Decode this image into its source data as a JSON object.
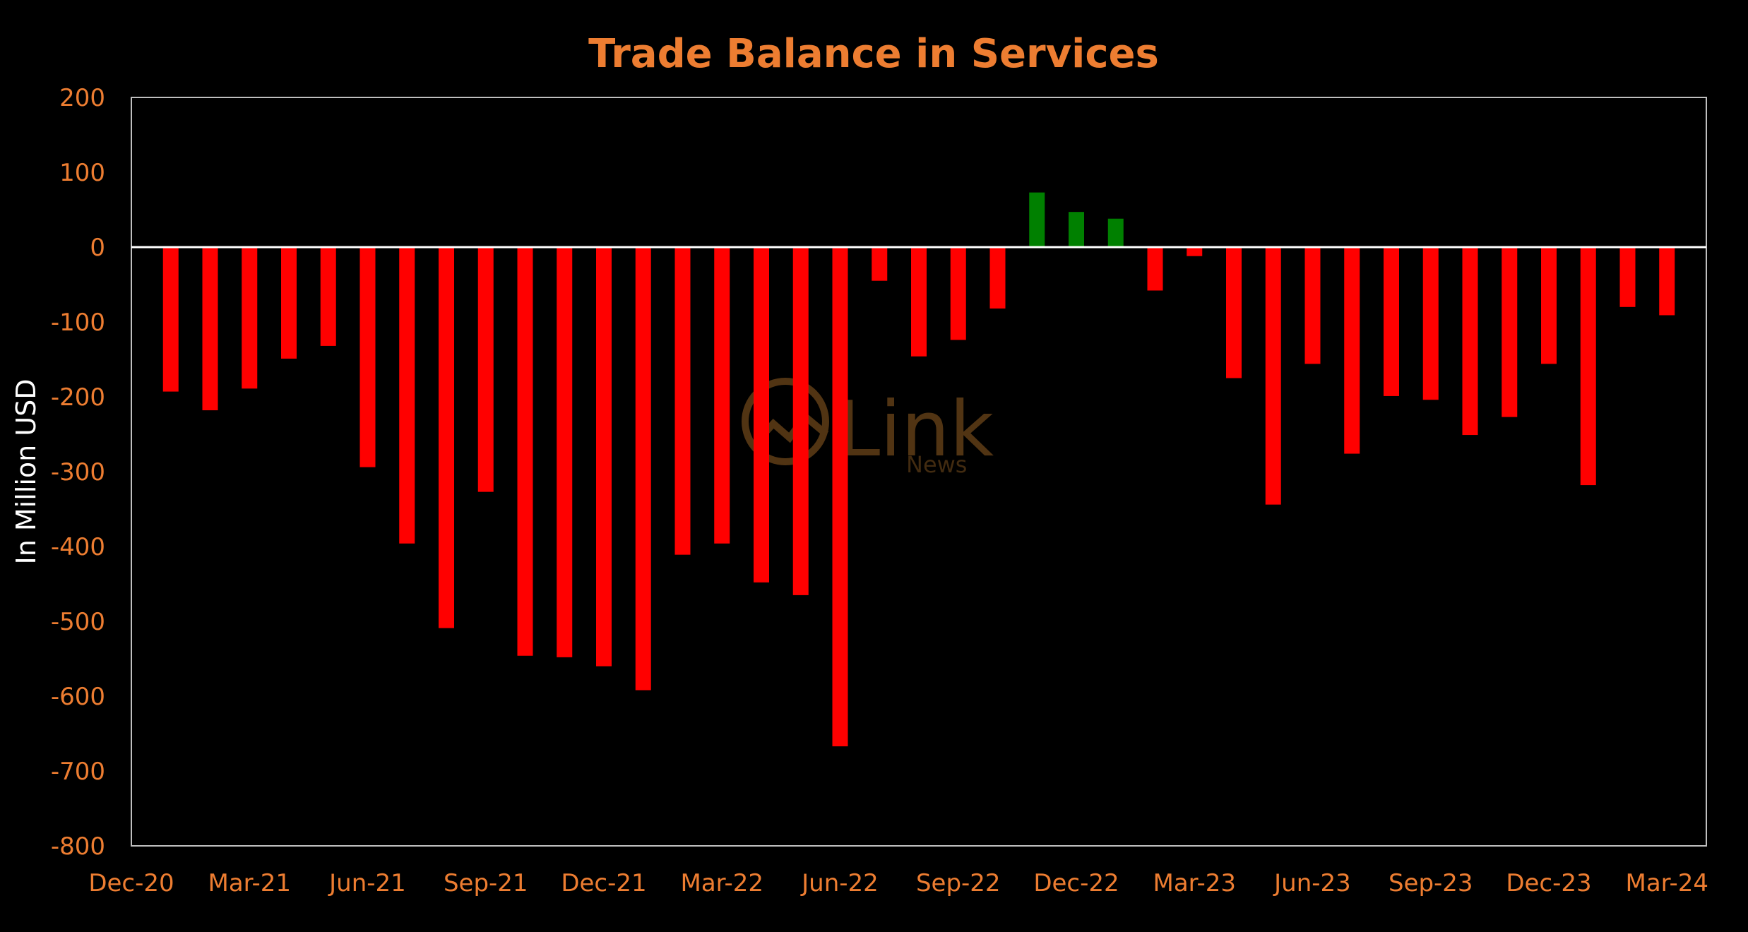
{
  "chart_data": {
    "type": "bar",
    "title": "Trade Balance in Services",
    "ylabel": "In Million USD",
    "xlabel": "",
    "ylim": [
      -800,
      200
    ],
    "yticks": [
      200,
      100,
      0,
      -100,
      -200,
      -300,
      -400,
      -500,
      -600,
      -700,
      -800
    ],
    "xtick_labels": [
      "Dec-20",
      "Mar-21",
      "Jun-21",
      "Sep-21",
      "Dec-21",
      "Mar-22",
      "Jun-22",
      "Sep-22",
      "Dec-22",
      "Mar-23",
      "Jun-23",
      "Sep-23",
      "Dec-23",
      "Mar-24"
    ],
    "categories": [
      "Jan-21",
      "Feb-21",
      "Mar-21",
      "Apr-21",
      "May-21",
      "Jun-21",
      "Jul-21",
      "Aug-21",
      "Sep-21",
      "Oct-21",
      "Nov-21",
      "Dec-21",
      "Jan-22",
      "Feb-22",
      "Mar-22",
      "Apr-22",
      "May-22",
      "Jun-22",
      "Jul-22",
      "Aug-22",
      "Sep-22",
      "Oct-22",
      "Nov-22",
      "Dec-22",
      "Jan-23",
      "Feb-23",
      "Mar-23",
      "Apr-23",
      "May-23",
      "Jun-23",
      "Jul-23",
      "Aug-23",
      "Sep-23",
      "Oct-23",
      "Nov-23",
      "Dec-23",
      "Jan-24",
      "Feb-24",
      "Mar-24"
    ],
    "values": [
      -193,
      -218,
      -189,
      -149,
      -132,
      -294,
      -396,
      -509,
      -327,
      -546,
      -548,
      -560,
      -592,
      -411,
      -396,
      -448,
      -465,
      -667,
      -45,
      -146,
      -124,
      -82,
      73,
      47,
      38,
      -58,
      -12,
      -175,
      -344,
      -156,
      -276,
      -199,
      -204,
      -251,
      -227,
      -156,
      -318,
      -80,
      -91
    ],
    "colors": {
      "positive": "#008000",
      "negative": "#FF0000",
      "background": "#000000",
      "title": "#ED7D31",
      "axis_text": "#ED7D31",
      "ylabel": "#FFFFFF",
      "frame": "#BFBFBF",
      "zero_line": "#FFFFFF"
    },
    "grid": false,
    "legend": "none"
  },
  "watermark": {
    "brand": "Link",
    "sub": "News"
  }
}
